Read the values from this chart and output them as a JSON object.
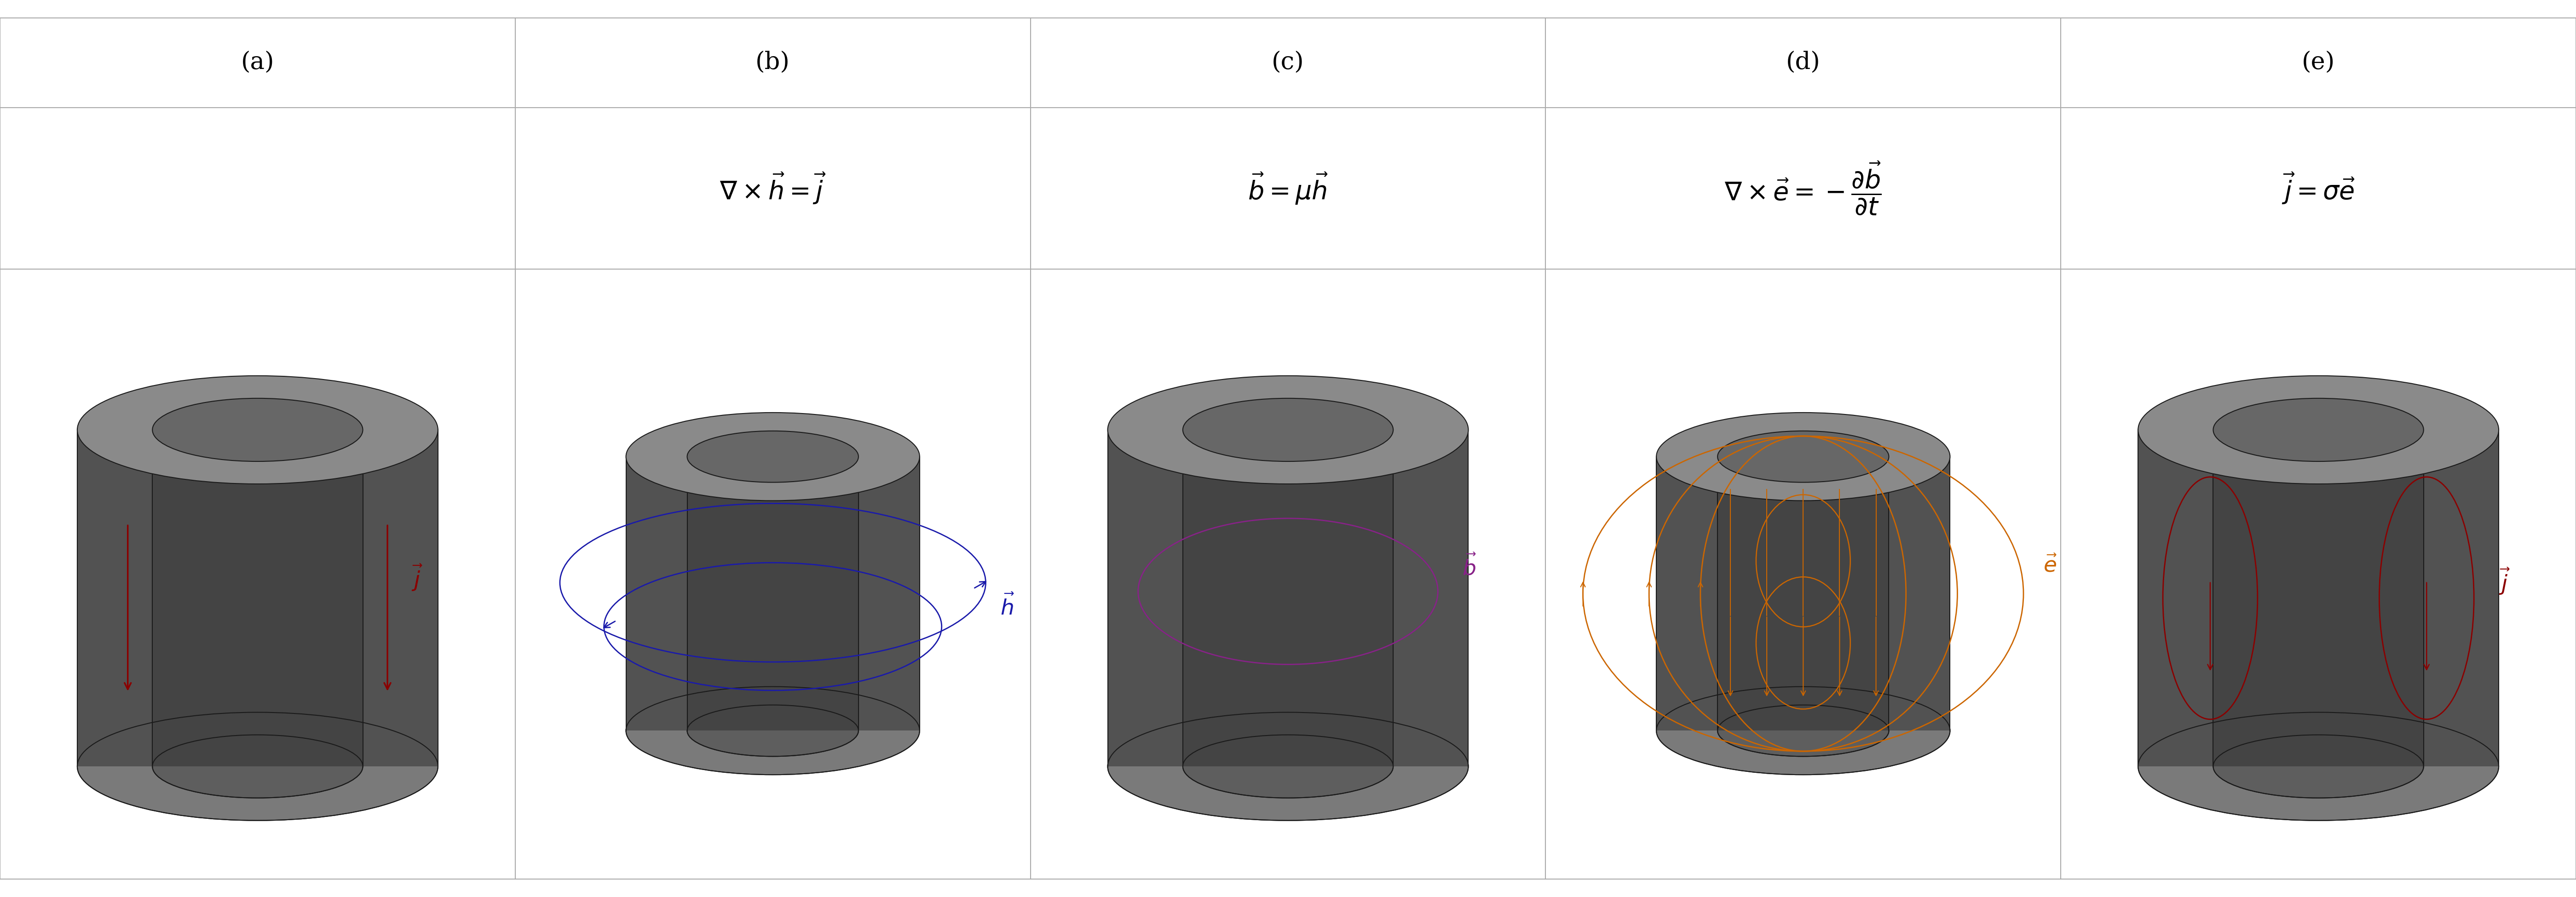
{
  "bg_color": "#ffffff",
  "panel_labels": [
    "(a)",
    "(b)",
    "(c)",
    "(d)",
    "(e)"
  ],
  "panel_equations": [
    "",
    "$\\nabla \\times \\vec{h} = \\vec{j}$",
    "$\\vec{b} = \\mu\\vec{h}$",
    "$\\nabla \\times \\vec{e} = -\\dfrac{\\partial\\vec{b}}{\\partial t}$",
    "$\\vec{j} = \\sigma\\vec{e}$"
  ],
  "casing_body_color": "#525252",
  "casing_inner_shadow": "#3d3d3d",
  "casing_top_light": "#8a8a8a",
  "casing_top_inner": "#676767",
  "casing_bottom_light": "#7a7a7a",
  "casing_bottom_inner": "#5e5e5e",
  "casing_inner_wall": "#444444",
  "edge_color": "#1a1a1a",
  "arrow_j_color": "#8b0000",
  "arrow_h_color": "#1a1aaa",
  "arrow_b_color": "#882288",
  "arrow_e_color": "#cc6600",
  "grid_color": "#aaaaaa",
  "label_fontsize": 38,
  "eq_fontsize": 40,
  "field_lw": 2.0,
  "cylinder_lw": 1.5
}
